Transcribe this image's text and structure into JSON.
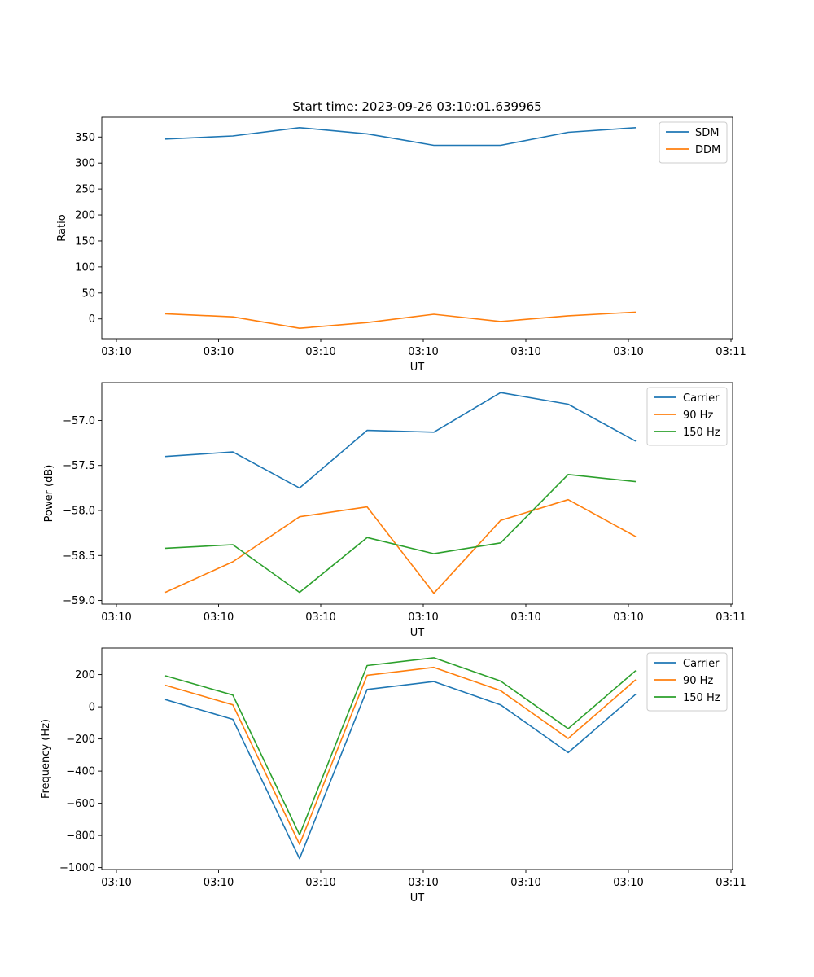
{
  "chart_data": [
    {
      "type": "line",
      "title": "Start time: 2023-09-26 03:10:01.639965",
      "xlabel": "UT",
      "ylabel": "Ratio",
      "x_tick_labels": [
        "03:10",
        "03:10",
        "03:10",
        "03:10",
        "03:10",
        "03:10",
        "03:10",
        "03:11"
      ],
      "ylim": [
        -38,
        388
      ],
      "y_ticks": [
        0,
        50,
        100,
        150,
        200,
        250,
        300,
        350
      ],
      "y_tick_labels": [
        "0",
        "50",
        "100",
        "150",
        "200",
        "250",
        "300",
        "350"
      ],
      "legend_position": "top-right",
      "series": [
        {
          "name": "SDM",
          "color": "#1f77b4",
          "values": [
            346,
            352,
            368,
            356,
            334,
            334,
            359,
            368
          ]
        },
        {
          "name": "DDM",
          "color": "#ff7f0e",
          "values": [
            10,
            4,
            -18,
            -7,
            9,
            -5,
            6,
            13
          ]
        }
      ]
    },
    {
      "type": "line",
      "title": "",
      "xlabel": "UT",
      "ylabel": "Power (dB)",
      "x_tick_labels": [
        "03:10",
        "03:10",
        "03:10",
        "03:10",
        "03:10",
        "03:10",
        "03:10",
        "03:11"
      ],
      "ylim": [
        -59.04,
        -56.58
      ],
      "y_ticks": [
        -59.0,
        -58.5,
        -58.0,
        -57.5,
        -57.0
      ],
      "y_tick_labels": [
        "−59.0",
        "−58.5",
        "−58.0",
        "−57.5",
        "−57.0"
      ],
      "legend_position": "top-right",
      "series": [
        {
          "name": "Carrier",
          "color": "#1f77b4",
          "values": [
            -57.4,
            -57.35,
            -57.75,
            -57.11,
            -57.13,
            -56.69,
            -56.82,
            -57.23
          ]
        },
        {
          "name": "90 Hz",
          "color": "#ff7f0e",
          "values": [
            -58.91,
            -58.57,
            -58.07,
            -57.96,
            -58.92,
            -58.11,
            -57.88,
            -58.29
          ]
        },
        {
          "name": "150 Hz",
          "color": "#2ca02c",
          "values": [
            -58.42,
            -58.38,
            -58.91,
            -58.3,
            -58.48,
            -58.36,
            -57.6,
            -57.68
          ]
        }
      ]
    },
    {
      "type": "line",
      "title": "",
      "xlabel": "UT",
      "ylabel": "Frequency (Hz)",
      "x_tick_labels": [
        "03:10",
        "03:10",
        "03:10",
        "03:10",
        "03:10",
        "03:10",
        "03:10",
        "03:11"
      ],
      "ylim": [
        -1012,
        365
      ],
      "y_ticks": [
        -1000,
        -800,
        -600,
        -400,
        -200,
        0,
        200
      ],
      "y_tick_labels": [
        "−1000",
        "−800",
        "−600",
        "−400",
        "−200",
        "0",
        "200"
      ],
      "legend_position": "top-right",
      "series": [
        {
          "name": "Carrier",
          "color": "#1f77b4",
          "values": [
            45,
            -78,
            -944,
            108,
            157,
            12,
            -285,
            78
          ]
        },
        {
          "name": "90 Hz",
          "color": "#ff7f0e",
          "values": [
            134,
            12,
            -855,
            196,
            245,
            100,
            -197,
            168
          ]
        },
        {
          "name": "150 Hz",
          "color": "#2ca02c",
          "values": [
            193,
            73,
            -796,
            256,
            305,
            160,
            -136,
            225
          ]
        }
      ]
    }
  ]
}
